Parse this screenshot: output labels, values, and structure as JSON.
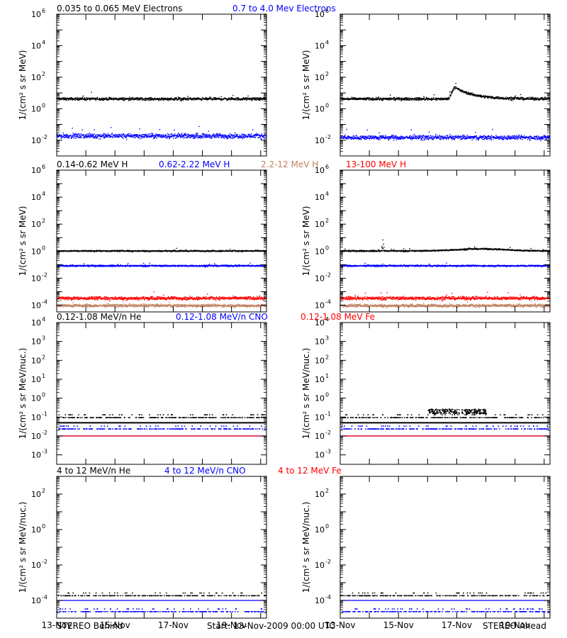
{
  "colors": {
    "black": "#000000",
    "blue": "#0000ff",
    "red": "#ff0000",
    "tan": "#c08060"
  },
  "footer": {
    "left": "STEREO Behind",
    "center": "Start: 13-Nov-2009 00:00 UTC",
    "right": "STEREO Ahead"
  },
  "chart_data": [
    {
      "id": "electrons",
      "type": "scatter",
      "y_scale": "log",
      "ylabel": "1/(cm² s sr MeV)",
      "ylim_exp": [
        -3,
        6
      ],
      "ytick_exps": [
        -2,
        0,
        2,
        4,
        6
      ],
      "xlim_days": [
        0,
        7.2
      ],
      "legend": [
        {
          "text": "0.035 to 0.065 MeV Electrons",
          "color": "#000000"
        },
        {
          "text": "0.7 to 4.0 Mev Electrons",
          "color": "#0000ff"
        }
      ],
      "behind": {
        "series": [
          {
            "name": "0.035 to 0.065 MeV Electrons",
            "color": "#000000",
            "base_exp": 0.65,
            "noise": 0.12
          },
          {
            "name": "0.7 to 4.0 Mev Electrons",
            "color": "#0000ff",
            "base_exp": -1.7,
            "noise": 0.22
          }
        ]
      },
      "ahead": {
        "series": [
          {
            "name": "0.035 to 0.065 MeV Electrons",
            "color": "#000000",
            "base_exp": 0.65,
            "noise": 0.12,
            "event": {
              "start_day": 3.7,
              "peak_day": 3.9,
              "peak_exp": 1.4,
              "decay_days": 1.6
            }
          },
          {
            "name": "0.7 to 4.0 Mev Electrons",
            "color": "#0000ff",
            "base_exp": -1.8,
            "noise": 0.2
          }
        ]
      }
    },
    {
      "id": "protons",
      "type": "scatter",
      "y_scale": "log",
      "ylabel": "1/(cm² s sr MeV)",
      "ylim_exp": [
        -4.5,
        6
      ],
      "ytick_exps": [
        -4,
        -2,
        0,
        2,
        4,
        6
      ],
      "xlim_days": [
        0,
        7.2
      ],
      "legend": [
        {
          "text": "0.14-0.62 MeV H",
          "color": "#000000"
        },
        {
          "text": "0.62-2.22 MeV H",
          "color": "#0000ff"
        },
        {
          "text": "2.2-12 MeV H",
          "color": "#c08060"
        },
        {
          "text": "13-100 MeV H",
          "color": "#ff0000"
        }
      ],
      "behind": {
        "series": [
          {
            "name": "0.14-0.62 MeV H",
            "color": "#000000",
            "base_exp": 0.05,
            "noise": 0.07
          },
          {
            "name": "0.62-2.22 MeV H",
            "color": "#0000ff",
            "base_exp": -1.05,
            "noise": 0.08
          },
          {
            "name": "2.2-12 MeV H",
            "color": "#c08060",
            "base_exp": -4.0,
            "noise": 0.15
          },
          {
            "name": "13-100 MeV H",
            "color": "#ff0000",
            "base_exp": -3.45,
            "noise": 0.17
          }
        ]
      },
      "ahead": {
        "series": [
          {
            "name": "0.14-0.62 MeV H",
            "color": "#000000",
            "base_exp": 0.05,
            "noise": 0.07,
            "bump": {
              "center_day": 4.8,
              "width_days": 1.2,
              "amp_exp": 0.15
            },
            "spike": {
              "day": 1.45,
              "peak_exp": 0.9
            }
          },
          {
            "name": "0.62-2.22 MeV H",
            "color": "#0000ff",
            "base_exp": -1.05,
            "noise": 0.08
          },
          {
            "name": "2.2-12 MeV H",
            "color": "#c08060",
            "base_exp": -4.0,
            "noise": 0.15
          },
          {
            "name": "13-100 MeV H",
            "color": "#ff0000",
            "base_exp": -3.45,
            "noise": 0.17
          }
        ]
      }
    },
    {
      "id": "heavy-low",
      "type": "scatter",
      "y_scale": "log",
      "ylabel": "1/(cm² s sr MeV/nuc.)",
      "ylim_exp": [
        -3.5,
        4
      ],
      "ytick_exps": [
        -3,
        -2,
        -1,
        0,
        1,
        2,
        3,
        4
      ],
      "xlim_days": [
        0,
        7.2
      ],
      "legend": [
        {
          "text": "0.12-1.08 MeV/n He",
          "color": "#000000"
        },
        {
          "text": "0.12-1.08 MeV/n CNO",
          "color": "#0000ff"
        },
        {
          "text": "0.12-1.08 MeV Fe",
          "color": "#ff0000"
        }
      ],
      "behind": {
        "series": [
          {
            "name": "0.12-1.08 MeV/n He",
            "color": "#000000",
            "line_exp": -1.3,
            "dots_exp": -1.0
          },
          {
            "name": "0.12-1.08 MeV/n CNO",
            "color": "#0000ff",
            "line_exp": -2.0,
            "dots_exp": -1.6
          },
          {
            "name": "0.12-1.08 MeV Fe",
            "color": "#ff0000",
            "line_exp": -2.0
          }
        ]
      },
      "ahead": {
        "series": [
          {
            "name": "0.12-1.08 MeV/n He",
            "color": "#000000",
            "line_exp": -1.3,
            "dots_exp": -1.0,
            "cluster": {
              "start_day": 3.0,
              "end_day": 5.0,
              "exp_range": [
                -0.8,
                -0.55
              ]
            }
          },
          {
            "name": "0.12-1.08 MeV/n CNO",
            "color": "#0000ff",
            "line_exp": -2.0,
            "dots_exp": -1.6
          },
          {
            "name": "0.12-1.08 MeV Fe",
            "color": "#ff0000",
            "line_exp": -2.0
          }
        ]
      }
    },
    {
      "id": "heavy-high",
      "type": "scatter",
      "y_scale": "log",
      "ylabel": "1/(cm² s sr MeV/nuc.)",
      "ylim_exp": [
        -5,
        3
      ],
      "ytick_exps": [
        -4,
        -2,
        0,
        2
      ],
      "xlim_days": [
        0,
        7.2
      ],
      "xtick_days": [
        0,
        2,
        4,
        6
      ],
      "xtick_labels": [
        "13-Nov",
        "15-Nov",
        "17-Nov",
        "19-Nov"
      ],
      "legend": [
        {
          "text": "4 to 12 MeV/n He",
          "color": "#000000"
        },
        {
          "text": "4 to 12 MeV/n CNO",
          "color": "#0000ff"
        },
        {
          "text": "4 to 12 MeV Fe",
          "color": "#ff0000"
        }
      ],
      "behind": {
        "series": [
          {
            "name": "4 to 12 MeV/n He",
            "color": "#000000",
            "dots_exp": -3.7
          },
          {
            "name": "4 to 12 MeV/n CNO",
            "color": "#0000ff",
            "line_exp": -4.0,
            "dots_exp": -4.6
          }
        ]
      },
      "ahead": {
        "series": [
          {
            "name": "4 to 12 MeV/n He",
            "color": "#000000",
            "dots_exp": -3.7
          },
          {
            "name": "4 to 12 MeV/n CNO",
            "color": "#0000ff",
            "line_exp": -4.0,
            "dots_exp": -4.6
          }
        ]
      }
    }
  ]
}
